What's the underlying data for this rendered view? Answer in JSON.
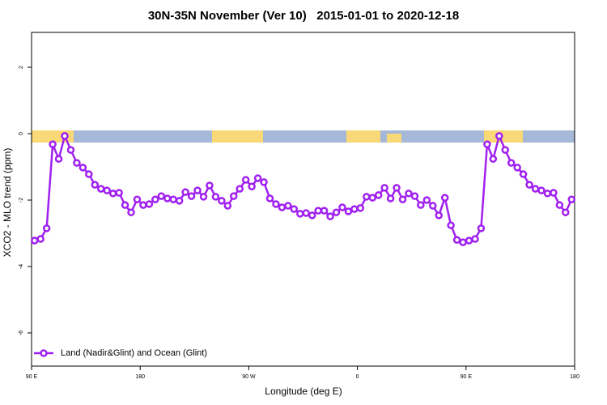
{
  "chart_data": {
    "type": "line",
    "title": "30N-35N November (Ver 10)   2015-01-01 to 2020-12-18",
    "xlabel": "Longitude (deg E)",
    "ylabel": "XCO2 - MLO trend (ppm)",
    "xlim": [
      90,
      540
    ],
    "ylim": [
      -7.0,
      3.05
    ],
    "xticks": [
      {
        "value": 90,
        "label": "90 E"
      },
      180,
      {
        "value": 270,
        "label": "90 W"
      },
      {
        "value": 360,
        "label": "0"
      },
      {
        "value": 450,
        "label": "90 E"
      },
      {
        "value": 540,
        "label": "180"
      }
    ],
    "yticks": [
      -6,
      -4,
      -2,
      0,
      2
    ],
    "legend": "bottom-left",
    "series": [
      {
        "name": "Land (Nadir&Glint) and Ocean (Glint)",
        "color": "#a020f0",
        "x": [
          92.5,
          97.5,
          102.5,
          107.5,
          112.5,
          117.5,
          122.5,
          127.5,
          132.5,
          137.5,
          142.5,
          147.5,
          152.5,
          157.5,
          162.5,
          167.5,
          172.5,
          177.5,
          182.5,
          187.5,
          192.5,
          197.5,
          202.5,
          207.5,
          212.5,
          217.5,
          222.5,
          227.5,
          232.5,
          237.5,
          242.5,
          247.5,
          252.5,
          257.5,
          262.5,
          267.5,
          272.5,
          277.5,
          282.5,
          287.5,
          292.5,
          297.5,
          302.5,
          307.5,
          312.5,
          317.5,
          322.5,
          327.5,
          332.5,
          337.5,
          342.5,
          347.5,
          352.5,
          357.5,
          362.5,
          367.5,
          372.5,
          377.5,
          382.5,
          387.5,
          392.5,
          397.5,
          402.5,
          407.5,
          412.5,
          417.5,
          422.5,
          427.5,
          432.5,
          437.5,
          442.5,
          447.5,
          452.5,
          457.5,
          462.5,
          467.5,
          472.5,
          477.5,
          482.5,
          487.5,
          492.5,
          497.5,
          502.5,
          507.5,
          512.5,
          517.5,
          522.5,
          527.5,
          532.5,
          537.5
        ],
        "values": [
          -3.22,
          -3.17,
          -2.85,
          -0.32,
          -0.76,
          -0.07,
          -0.49,
          -0.88,
          -1.02,
          -1.22,
          -1.54,
          -1.66,
          -1.71,
          -1.8,
          -1.78,
          -2.15,
          -2.37,
          -1.98,
          -2.15,
          -2.12,
          -1.98,
          -1.88,
          -1.95,
          -1.98,
          -2.02,
          -1.76,
          -1.88,
          -1.71,
          -1.9,
          -1.56,
          -1.9,
          -2.02,
          -2.17,
          -1.88,
          -1.66,
          -1.39,
          -1.59,
          -1.34,
          -1.46,
          -1.95,
          -2.12,
          -2.22,
          -2.17,
          -2.27,
          -2.41,
          -2.39,
          -2.46,
          -2.32,
          -2.32,
          -2.49,
          -2.37,
          -2.22,
          -2.34,
          -2.27,
          -2.24,
          -1.9,
          -1.93,
          -1.85,
          -1.63,
          -1.95,
          -1.63,
          -1.98,
          -1.8,
          -1.88,
          -2.15,
          -2.0,
          -2.17,
          -2.46,
          -1.93,
          -2.76,
          -3.2,
          -3.27,
          -3.22,
          -3.17,
          -2.85,
          -0.32,
          -0.76,
          -0.07,
          -0.49,
          -0.88,
          -1.02,
          -1.22,
          -1.54,
          -1.66,
          -1.71,
          -1.8,
          -1.78,
          -2.15,
          -2.37,
          -1.98
        ]
      }
    ]
  }
}
